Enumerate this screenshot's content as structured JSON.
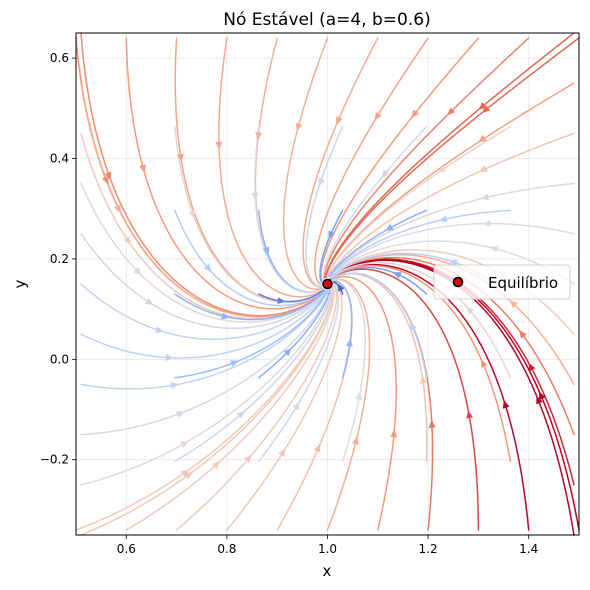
{
  "chart_data": {
    "type": "streamplot",
    "title": "Nó Estável (a=4, b=0.6)",
    "xlabel": "x",
    "ylabel": "y",
    "xlim": [
      0.5,
      1.5
    ],
    "ylim": [
      -0.35,
      0.65
    ],
    "xticks": [
      0.6,
      0.8,
      1.0,
      1.2,
      1.4
    ],
    "xtick_labels": [
      "0.6",
      "0.8",
      "1.0",
      "1.2",
      "1.4"
    ],
    "yticks": [
      -0.2,
      0.0,
      0.2,
      0.4,
      0.6
    ],
    "ytick_labels": [
      "−0.2",
      "0.0",
      "0.2",
      "0.4",
      "0.6"
    ],
    "grid": true,
    "colormap": "coolwarm",
    "equilibrium": {
      "x": 1.0,
      "y": 0.15,
      "label": "Equilíbrio",
      "color": "#cc1111"
    },
    "legend": {
      "placement": "right",
      "entries": [
        "Equilíbrio"
      ]
    }
  }
}
